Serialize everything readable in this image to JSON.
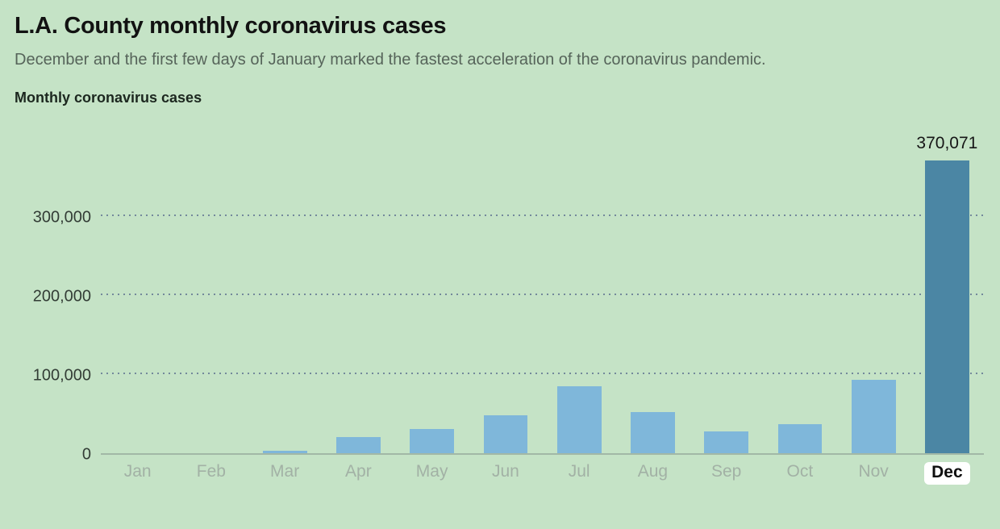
{
  "header": {
    "title": "L.A. County monthly coronavirus cases",
    "subtitle": "December and the first few days of January marked the fastest acceleration of the coronavirus pandemic."
  },
  "chart_data": {
    "type": "bar",
    "title": "Monthly coronavirus cases",
    "categories": [
      "Jan",
      "Feb",
      "Mar",
      "Apr",
      "May",
      "Jun",
      "Jul",
      "Aug",
      "Sep",
      "Oct",
      "Nov",
      "Dec"
    ],
    "values": [
      0,
      0,
      3000,
      20000,
      31000,
      48000,
      85000,
      52000,
      28000,
      37000,
      93000,
      370071
    ],
    "highlight_index": 11,
    "annotation": {
      "text": "370,071",
      "index": 11
    },
    "xlabel": "",
    "ylabel": "",
    "ylim": [
      0,
      418000
    ],
    "yticks": [
      0,
      100000,
      200000,
      300000
    ],
    "ytick_labels": [
      "0",
      "100,000",
      "200,000",
      "300,000"
    ],
    "grid": "horizontal-dotted",
    "legend": "none",
    "colors": {
      "background": "#c5e3c6",
      "bar": "#7fb7da",
      "highlight_bar": "#4b86a4",
      "gridline": "#73899b",
      "axis_line": "#a2b8a6",
      "month_label": "#a2b1a5",
      "highlight_label_bg": "#ffffff",
      "text": "#121212"
    }
  }
}
